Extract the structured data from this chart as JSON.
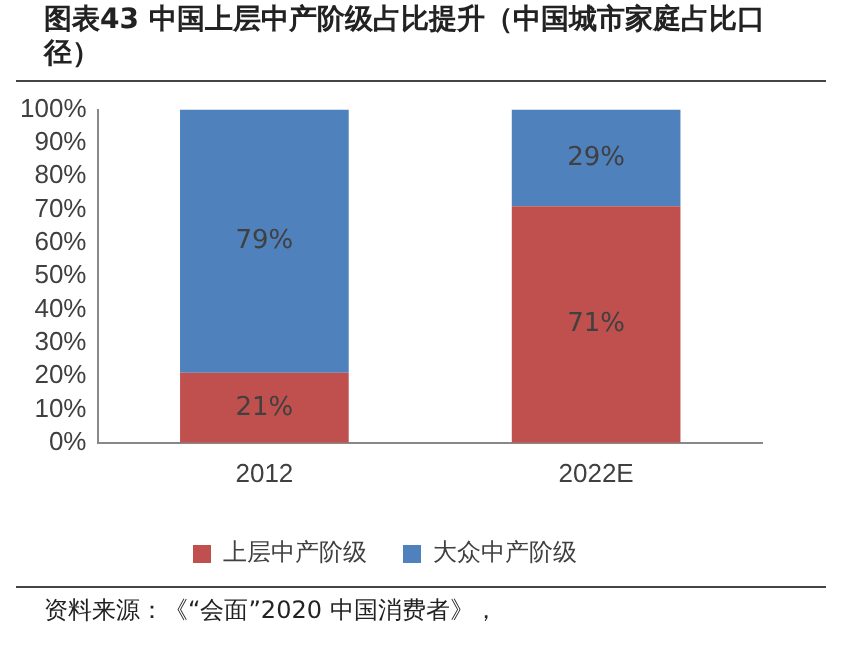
{
  "chart_data": {
    "type": "bar",
    "title": "图表43 中国上层中产阶级占比提升（中国城市家庭占比口径）",
    "stacked": true,
    "categories": [
      "2012",
      "2022E"
    ],
    "series": [
      {
        "name": "上层中产阶级",
        "color": "#c0504d",
        "values": [
          21,
          71
        ],
        "value_labels": [
          "21%",
          "71%"
        ]
      },
      {
        "name": "大众中产阶级",
        "color": "#4f81bd",
        "values": [
          79,
          29
        ],
        "value_labels": [
          "79%",
          "29%"
        ]
      }
    ],
    "ylim": [
      0,
      100
    ],
    "yticks": [
      {
        "value": 0,
        "label": "0%"
      },
      {
        "value": 10,
        "label": "10%"
      },
      {
        "value": 20,
        "label": "20%"
      },
      {
        "value": 30,
        "label": "30%"
      },
      {
        "value": 40,
        "label": "40%"
      },
      {
        "value": 50,
        "label": "50%"
      },
      {
        "value": 60,
        "label": "60%"
      },
      {
        "value": 70,
        "label": "70%"
      },
      {
        "value": 80,
        "label": "80%"
      },
      {
        "value": 90,
        "label": "90%"
      },
      {
        "value": 100,
        "label": "100%"
      }
    ],
    "grid": false,
    "legend": "bottom",
    "annotations": [
      "资料来源：《“会面”2020 中国消费者》，"
    ]
  }
}
